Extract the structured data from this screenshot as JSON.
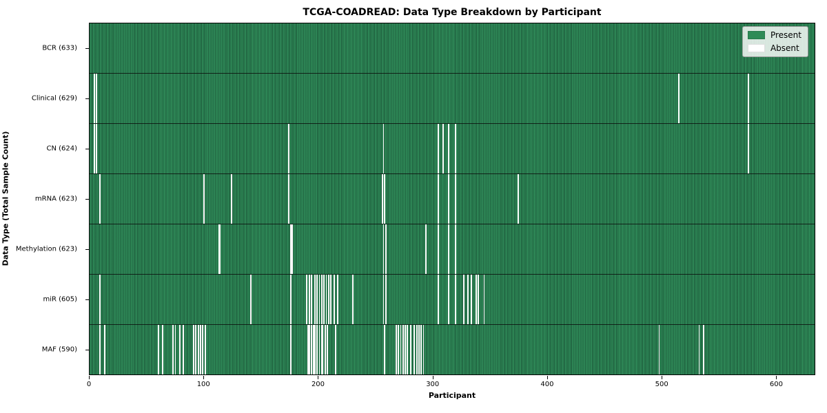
{
  "title": "TCGA-COADREAD: Data Type Breakdown by Participant",
  "xlabel": "Participant",
  "ylabel": "Data Type (Total Sample Count)",
  "legend": {
    "present_label": "Present",
    "absent_label": "Absent"
  },
  "colors": {
    "present": "#2e8b57",
    "present_edge": "#1f613f",
    "absent": "#fbfbfb",
    "row_divider": "#0a0a0a",
    "axes_border": "#000000",
    "legend_border": "#9a9a9a"
  },
  "chart_data": {
    "type": "heatmap",
    "title": "TCGA-COADREAD: Data Type Breakdown by Participant",
    "xlabel": "Participant",
    "ylabel": "Data Type (Total Sample Count)",
    "legend": [
      "Present",
      "Absent"
    ],
    "legend_position": "upper right",
    "n_participants": 633,
    "xlim": [
      0,
      634
    ],
    "x_ticks": [
      0,
      100,
      200,
      300,
      400,
      500,
      600
    ],
    "rows": [
      {
        "label": "BCR (633)",
        "data_type": "BCR",
        "total": 633,
        "absent_participants": []
      },
      {
        "label": "Clinical (629)",
        "data_type": "Clinical",
        "total": 629,
        "absent_participants": [
          3,
          5,
          514,
          575
        ]
      },
      {
        "label": "CN (624)",
        "data_type": "CN",
        "total": 624,
        "absent_participants": [
          3,
          5,
          173,
          256,
          304,
          308,
          313,
          319,
          575
        ]
      },
      {
        "label": "mRNA (623)",
        "data_type": "mRNA",
        "total": 623,
        "absent_participants": [
          8,
          99,
          123,
          173,
          255,
          257,
          304,
          313,
          319,
          374
        ]
      },
      {
        "label": "Methylation (623)",
        "data_type": "Methylation",
        "total": 623,
        "absent_participants": [
          112,
          113,
          175,
          176,
          256,
          258,
          293,
          304,
          313,
          319
        ]
      },
      {
        "label": "miR (605)",
        "data_type": "miR",
        "total": 605,
        "absent_participants": [
          8,
          140,
          175,
          189,
          191,
          193,
          196,
          198,
          200,
          202,
          204,
          206,
          208,
          210,
          213,
          216,
          229,
          256,
          258,
          304,
          313,
          319,
          326,
          330,
          333,
          337,
          339,
          344
        ]
      },
      {
        "label": "MAF (590)",
        "data_type": "MAF",
        "total": 590,
        "absent_participants": [
          8,
          12,
          59,
          63,
          72,
          74,
          78,
          81,
          90,
          92,
          94,
          96,
          98,
          100,
          175,
          190,
          191,
          193,
          195,
          196,
          198,
          200,
          202,
          203,
          205,
          207,
          214,
          257,
          267,
          269,
          271,
          273,
          275,
          277,
          280,
          283,
          285,
          287,
          289,
          291,
          497,
          532,
          536
        ]
      }
    ]
  }
}
